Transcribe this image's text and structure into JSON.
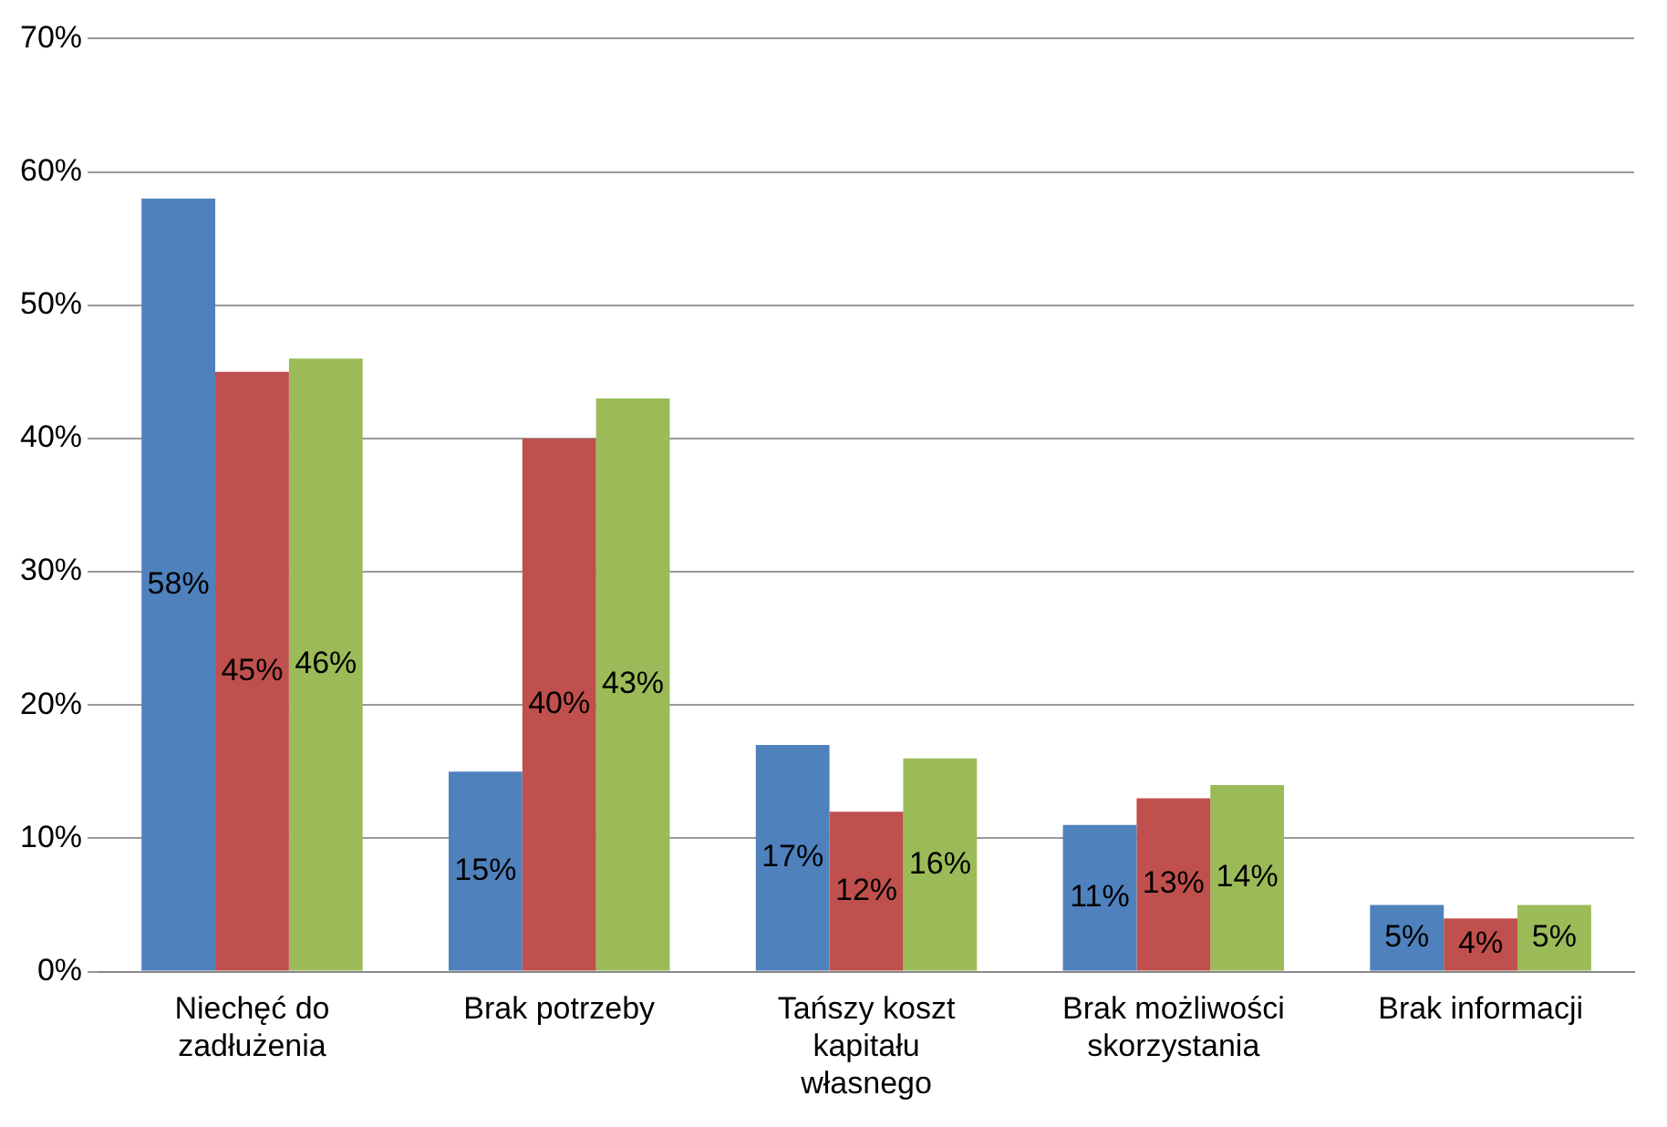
{
  "chart_data": {
    "type": "bar",
    "categories": [
      "Niechęć do zadłużenia",
      "Brak potrzeby",
      "Tańszy koszt kapitału własnego",
      "Brak możliwości skorzystania",
      "Brak informacji"
    ],
    "series": [
      {
        "color": "#4f81bd",
        "values": [
          58,
          15,
          17,
          11,
          5
        ],
        "value_labels": [
          "58%",
          "15%",
          "17%",
          "11%",
          "5%"
        ]
      },
      {
        "color": "#c0504d",
        "values": [
          45,
          40,
          12,
          13,
          4
        ],
        "value_labels": [
          "45%",
          "40%",
          "12%",
          "13%",
          "4%"
        ]
      },
      {
        "color": "#9bbb59",
        "values": [
          46,
          43,
          16,
          14,
          5
        ],
        "value_labels": [
          "46%",
          "43%",
          "16%",
          "14%",
          "5%"
        ]
      }
    ],
    "ylim": [
      0,
      70
    ],
    "yticks": [
      {
        "value": 0,
        "label": "0%"
      },
      {
        "value": 10,
        "label": "10%"
      },
      {
        "value": 20,
        "label": "20%"
      },
      {
        "value": 30,
        "label": "30%"
      },
      {
        "value": 40,
        "label": "40%"
      },
      {
        "value": 50,
        "label": "50%"
      },
      {
        "value": 60,
        "label": "60%"
      },
      {
        "value": 70,
        "label": "70%"
      }
    ],
    "grid": "y",
    "legend": false
  }
}
